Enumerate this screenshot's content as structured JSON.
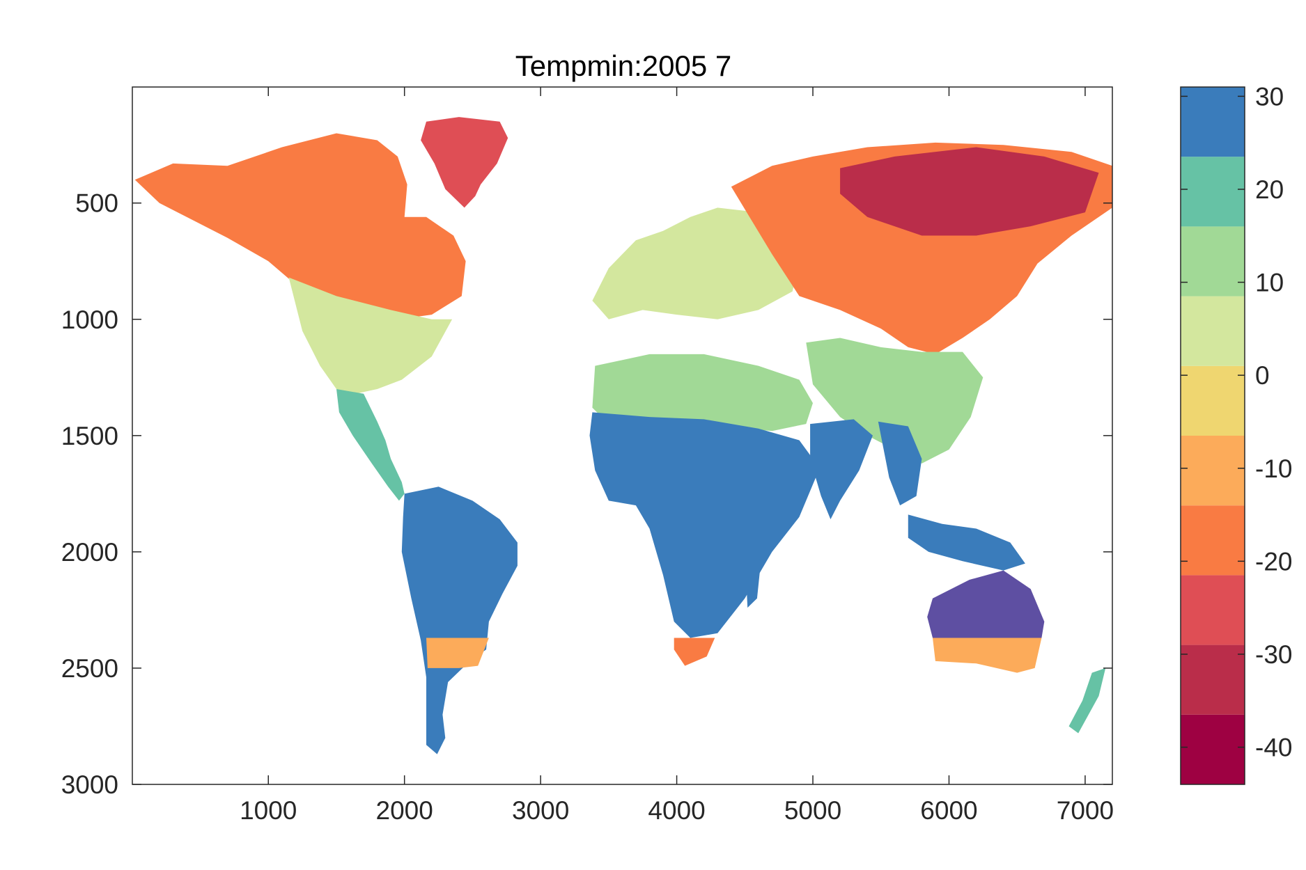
{
  "chart_data": {
    "type": "heatmap",
    "title": "Tempmin:2005  7",
    "xlabel": "",
    "ylabel": "",
    "xlim": [
      1,
      7200
    ],
    "ylim": [
      3000,
      1
    ],
    "y_reversed": true,
    "grid": false,
    "x_ticks": [
      1000,
      2000,
      3000,
      4000,
      5000,
      6000,
      7000
    ],
    "y_ticks": [
      500,
      1000,
      1500,
      2000,
      2500,
      3000
    ],
    "colorbar": {
      "placement": "right",
      "range": [
        -44,
        31
      ],
      "ticks": [
        30,
        20,
        10,
        0,
        -10,
        -20,
        -30,
        -40
      ],
      "levels": [
        {
          "min": -44,
          "max": -36.5,
          "color": "#9E0142"
        },
        {
          "min": -36.5,
          "max": -29,
          "color": "#BA2D4A"
        },
        {
          "min": -29,
          "max": -21.5,
          "color": "#DF4E55"
        },
        {
          "min": -21.5,
          "max": -14,
          "color": "#F97B43"
        },
        {
          "min": -14,
          "max": -6.5,
          "color": "#FCAB5A"
        },
        {
          "min": -6.5,
          "max": 1,
          "color": "#EFD670"
        },
        {
          "min": 1,
          "max": 8.5,
          "color": "#D3E79E"
        },
        {
          "min": 8.5,
          "max": 16,
          "color": "#A1D996"
        },
        {
          "min": 16,
          "max": 23.5,
          "color": "#66C2A5"
        },
        {
          "min": 23.5,
          "max": 31,
          "color": "#3A7CBB"
        },
        {
          "min": 31,
          "max": 38.5,
          "color": "#5E4FA2"
        }
      ]
    },
    "regions": [
      {
        "name": "greenland",
        "level": 2,
        "points": [
          [
            2160,
            150
          ],
          [
            2400,
            130
          ],
          [
            2700,
            150
          ],
          [
            2760,
            220
          ],
          [
            2680,
            330
          ],
          [
            2560,
            420
          ],
          [
            2520,
            470
          ],
          [
            2440,
            520
          ],
          [
            2300,
            440
          ],
          [
            2220,
            330
          ],
          [
            2120,
            230
          ]
        ]
      },
      {
        "name": "north-america-north",
        "level": 3,
        "points": [
          [
            20,
            400
          ],
          [
            300,
            330
          ],
          [
            700,
            340
          ],
          [
            1100,
            260
          ],
          [
            1500,
            200
          ],
          [
            1800,
            230
          ],
          [
            1950,
            300
          ],
          [
            2020,
            420
          ],
          [
            2000,
            560
          ],
          [
            2160,
            560
          ],
          [
            2360,
            640
          ],
          [
            2450,
            750
          ],
          [
            2420,
            900
          ],
          [
            2200,
            980
          ],
          [
            1950,
            1000
          ],
          [
            1700,
            980
          ],
          [
            1400,
            950
          ],
          [
            1200,
            850
          ],
          [
            1000,
            750
          ],
          [
            700,
            650
          ],
          [
            400,
            560
          ],
          [
            200,
            500
          ]
        ]
      },
      {
        "name": "north-america-temperate",
        "level": 6,
        "points": [
          [
            1150,
            820
          ],
          [
            1500,
            900
          ],
          [
            1900,
            960
          ],
          [
            2200,
            1000
          ],
          [
            2350,
            1000
          ],
          [
            2200,
            1160
          ],
          [
            1980,
            1260
          ],
          [
            1800,
            1300
          ],
          [
            1640,
            1320
          ],
          [
            1500,
            1300
          ],
          [
            1380,
            1200
          ],
          [
            1250,
            1050
          ]
        ]
      },
      {
        "name": "central-america",
        "level": 8,
        "points": [
          [
            1500,
            1300
          ],
          [
            1700,
            1320
          ],
          [
            1800,
            1440
          ],
          [
            1860,
            1520
          ],
          [
            1900,
            1600
          ],
          [
            1980,
            1700
          ],
          [
            2000,
            1750
          ],
          [
            1960,
            1780
          ],
          [
            1880,
            1720
          ],
          [
            1760,
            1620
          ],
          [
            1620,
            1500
          ],
          [
            1520,
            1400
          ]
        ]
      },
      {
        "name": "south-america",
        "level": 9,
        "points": [
          [
            2000,
            1750
          ],
          [
            2250,
            1720
          ],
          [
            2500,
            1780
          ],
          [
            2700,
            1860
          ],
          [
            2830,
            1960
          ],
          [
            2830,
            2060
          ],
          [
            2720,
            2180
          ],
          [
            2620,
            2300
          ],
          [
            2600,
            2420
          ],
          [
            2480,
            2470
          ],
          [
            2320,
            2560
          ],
          [
            2280,
            2700
          ],
          [
            2300,
            2800
          ],
          [
            2240,
            2870
          ],
          [
            2160,
            2830
          ],
          [
            2160,
            2700
          ],
          [
            2160,
            2540
          ],
          [
            2120,
            2380
          ],
          [
            2050,
            2200
          ],
          [
            1980,
            2000
          ],
          [
            1990,
            1850
          ]
        ]
      },
      {
        "name": "south-america-band",
        "level": 4,
        "points": [
          [
            2160,
            2370
          ],
          [
            2620,
            2370
          ],
          [
            2540,
            2490
          ],
          [
            2400,
            2500
          ],
          [
            2170,
            2500
          ]
        ]
      },
      {
        "name": "europe",
        "level": 6,
        "points": [
          [
            3500,
            780
          ],
          [
            3700,
            660
          ],
          [
            3900,
            620
          ],
          [
            4100,
            560
          ],
          [
            4300,
            520
          ],
          [
            4600,
            540
          ],
          [
            4800,
            620
          ],
          [
            4900,
            760
          ],
          [
            4850,
            880
          ],
          [
            4600,
            960
          ],
          [
            4300,
            1000
          ],
          [
            4000,
            980
          ],
          [
            3750,
            960
          ],
          [
            3500,
            1000
          ],
          [
            3380,
            920
          ]
        ]
      },
      {
        "name": "asia-north",
        "level": 3,
        "points": [
          [
            4400,
            430
          ],
          [
            4700,
            340
          ],
          [
            5000,
            300
          ],
          [
            5400,
            260
          ],
          [
            5900,
            240
          ],
          [
            6400,
            250
          ],
          [
            6900,
            280
          ],
          [
            7200,
            340
          ],
          [
            7200,
            520
          ],
          [
            6900,
            640
          ],
          [
            6650,
            760
          ],
          [
            6500,
            900
          ],
          [
            6300,
            1000
          ],
          [
            6100,
            1080
          ],
          [
            5900,
            1150
          ],
          [
            5700,
            1120
          ],
          [
            5500,
            1040
          ],
          [
            5200,
            960
          ],
          [
            4900,
            900
          ],
          [
            4700,
            720
          ]
        ]
      },
      {
        "name": "siberia-core",
        "level": 1,
        "points": [
          [
            5200,
            350
          ],
          [
            5600,
            300
          ],
          [
            6200,
            260
          ],
          [
            6700,
            300
          ],
          [
            7100,
            370
          ],
          [
            7000,
            540
          ],
          [
            6600,
            600
          ],
          [
            6200,
            640
          ],
          [
            5800,
            640
          ],
          [
            5400,
            560
          ],
          [
            5200,
            460
          ]
        ]
      },
      {
        "name": "asia-south",
        "level": 7,
        "points": [
          [
            4950,
            1100
          ],
          [
            5200,
            1080
          ],
          [
            5500,
            1120
          ],
          [
            5800,
            1140
          ],
          [
            6100,
            1140
          ],
          [
            6250,
            1250
          ],
          [
            6160,
            1420
          ],
          [
            6000,
            1560
          ],
          [
            5800,
            1620
          ],
          [
            5600,
            1560
          ],
          [
            5400,
            1500
          ],
          [
            5200,
            1420
          ],
          [
            5000,
            1280
          ]
        ]
      },
      {
        "name": "africa-north",
        "level": 7,
        "points": [
          [
            3400,
            1200
          ],
          [
            3800,
            1150
          ],
          [
            4200,
            1150
          ],
          [
            4600,
            1200
          ],
          [
            4900,
            1260
          ],
          [
            5000,
            1360
          ],
          [
            4950,
            1450
          ],
          [
            4700,
            1480
          ],
          [
            4300,
            1460
          ],
          [
            3900,
            1460
          ],
          [
            3500,
            1450
          ],
          [
            3380,
            1380
          ]
        ]
      },
      {
        "name": "africa",
        "level": 9,
        "points": [
          [
            3380,
            1400
          ],
          [
            3800,
            1420
          ],
          [
            4200,
            1430
          ],
          [
            4600,
            1470
          ],
          [
            4900,
            1520
          ],
          [
            5050,
            1640
          ],
          [
            4900,
            1850
          ],
          [
            4700,
            2000
          ],
          [
            4500,
            2200
          ],
          [
            4300,
            2350
          ],
          [
            4100,
            2370
          ],
          [
            3980,
            2300
          ],
          [
            3900,
            2100
          ],
          [
            3800,
            1900
          ],
          [
            3700,
            1800
          ],
          [
            3500,
            1780
          ],
          [
            3400,
            1650
          ],
          [
            3360,
            1500
          ]
        ]
      },
      {
        "name": "africa-band",
        "level": 3,
        "points": [
          [
            3980,
            2370
          ],
          [
            4280,
            2370
          ],
          [
            4220,
            2450
          ],
          [
            4060,
            2490
          ],
          [
            3980,
            2420
          ]
        ]
      },
      {
        "name": "madagascar",
        "level": 9,
        "points": [
          [
            4560,
            2040
          ],
          [
            4620,
            2030
          ],
          [
            4590,
            2200
          ],
          [
            4520,
            2240
          ],
          [
            4510,
            2120
          ]
        ]
      },
      {
        "name": "india",
        "level": 9,
        "points": [
          [
            4980,
            1450
          ],
          [
            5300,
            1430
          ],
          [
            5440,
            1500
          ],
          [
            5340,
            1650
          ],
          [
            5200,
            1780
          ],
          [
            5130,
            1860
          ],
          [
            5060,
            1760
          ],
          [
            4980,
            1600
          ]
        ]
      },
      {
        "name": "southeast-asia",
        "level": 9,
        "points": [
          [
            5480,
            1440
          ],
          [
            5700,
            1460
          ],
          [
            5800,
            1600
          ],
          [
            5760,
            1760
          ],
          [
            5640,
            1800
          ],
          [
            5560,
            1680
          ]
        ]
      },
      {
        "name": "maritime-asia",
        "level": 9,
        "points": [
          [
            5700,
            1840
          ],
          [
            5950,
            1880
          ],
          [
            6200,
            1900
          ],
          [
            6450,
            1960
          ],
          [
            6560,
            2050
          ],
          [
            6400,
            2080
          ],
          [
            6100,
            2040
          ],
          [
            5850,
            2000
          ],
          [
            5700,
            1940
          ]
        ]
      },
      {
        "name": "australia",
        "level": 10,
        "points": [
          [
            5880,
            2200
          ],
          [
            6150,
            2120
          ],
          [
            6400,
            2080
          ],
          [
            6600,
            2160
          ],
          [
            6700,
            2300
          ],
          [
            6680,
            2370
          ],
          [
            5880,
            2370
          ],
          [
            5840,
            2280
          ]
        ]
      },
      {
        "name": "australia-band",
        "level": 4,
        "points": [
          [
            5880,
            2370
          ],
          [
            6680,
            2370
          ],
          [
            6630,
            2500
          ],
          [
            6500,
            2520
          ],
          [
            6200,
            2480
          ],
          [
            5900,
            2470
          ]
        ]
      },
      {
        "name": "new-zealand",
        "level": 8,
        "points": [
          [
            7050,
            2520
          ],
          [
            7150,
            2500
          ],
          [
            7100,
            2620
          ],
          [
            6950,
            2780
          ],
          [
            6880,
            2750
          ],
          [
            6980,
            2640
          ]
        ]
      }
    ]
  }
}
